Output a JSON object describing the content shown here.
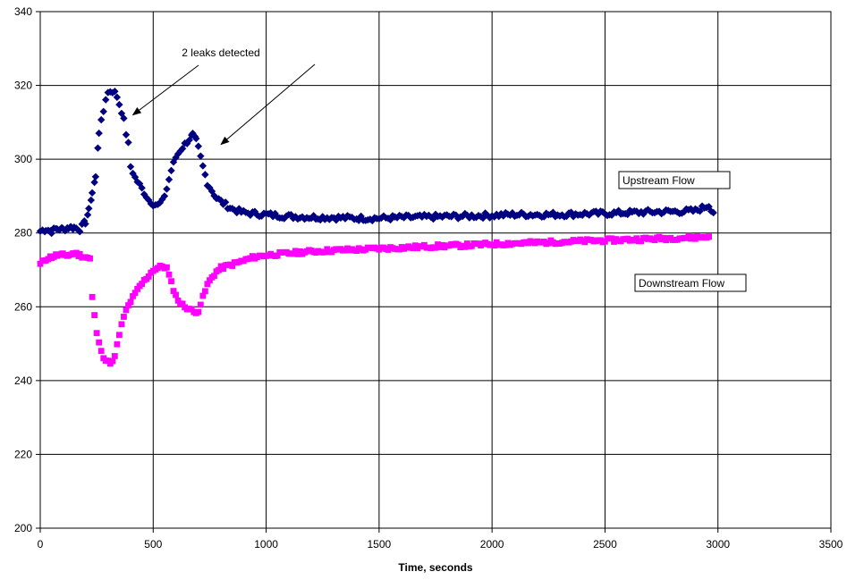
{
  "chart_data": {
    "type": "scatter",
    "title": "",
    "xlabel": "Time, seconds",
    "ylabel": "",
    "xlim": [
      0,
      3500
    ],
    "ylim": [
      200,
      340
    ],
    "xticks": [
      "0",
      "500",
      "1000",
      "1500",
      "2000",
      "2500",
      "3000",
      "3500"
    ],
    "yticks": [
      "200",
      "220",
      "240",
      "260",
      "280",
      "300",
      "320",
      "340"
    ],
    "grid": true,
    "legend": "none",
    "annotations": [
      {
        "text": "2 leaks detected",
        "arrows_to": [
          [
            410,
            312
          ],
          [
            800,
            304
          ]
        ]
      }
    ],
    "series": [
      {
        "name": "Upstream Flow",
        "marker": "diamond",
        "color": "#000080",
        "label_position": "right",
        "x": [
          0,
          25,
          50,
          75,
          100,
          125,
          150,
          175,
          200,
          215,
          230,
          245,
          260,
          270,
          280,
          290,
          300,
          310,
          320,
          330,
          340,
          350,
          360,
          370,
          380,
          390,
          400,
          420,
          440,
          460,
          480,
          500,
          520,
          540,
          560,
          580,
          600,
          620,
          640,
          660,
          675,
          690,
          700,
          720,
          740,
          760,
          780,
          800,
          850,
          900,
          1000,
          1100,
          1200,
          1300,
          1400,
          1500,
          1600,
          1700,
          1800,
          1900,
          2000,
          2100,
          2200,
          2300,
          2400,
          2500,
          2600,
          2700,
          2800,
          2900,
          2960,
          2980
        ],
        "y": [
          280.5,
          281.0,
          280.5,
          281.2,
          281.0,
          281.5,
          281.5,
          281.0,
          283.0,
          286.0,
          291.0,
          295.0,
          307.5,
          310.0,
          313.0,
          316.5,
          318.0,
          318.5,
          318.5,
          318.0,
          317.0,
          315.0,
          313.0,
          310.5,
          307.0,
          304.0,
          298.0,
          295.0,
          293.0,
          291.0,
          289.0,
          288.0,
          287.5,
          288.5,
          292.0,
          297.0,
          300.5,
          302.5,
          304.0,
          305.5,
          306.5,
          305.0,
          303.0,
          298.0,
          293.5,
          291.5,
          289.5,
          288.5,
          286.5,
          285.5,
          285.0,
          284.5,
          284.3,
          284.2,
          284.0,
          284.0,
          284.2,
          284.3,
          284.5,
          284.6,
          284.8,
          285.0,
          285.0,
          285.0,
          285.2,
          285.3,
          285.5,
          285.7,
          285.8,
          286.0,
          287.5,
          285.5
        ]
      },
      {
        "name": "Downstream Flow",
        "marker": "square",
        "color": "#ff00ff",
        "label_position": "right",
        "x": [
          0,
          25,
          50,
          75,
          100,
          125,
          150,
          175,
          200,
          220,
          230,
          240,
          250,
          260,
          270,
          280,
          290,
          300,
          310,
          320,
          330,
          340,
          350,
          360,
          370,
          380,
          400,
          420,
          440,
          460,
          480,
          500,
          520,
          540,
          560,
          580,
          600,
          620,
          640,
          660,
          680,
          700,
          720,
          740,
          760,
          780,
          800,
          850,
          900,
          950,
          1000,
          1100,
          1200,
          1300,
          1400,
          1500,
          1600,
          1700,
          1800,
          1900,
          2000,
          2100,
          2200,
          2300,
          2400,
          2500,
          2600,
          2700,
          2800,
          2900,
          2960
        ],
        "y": [
          271.5,
          273.0,
          273.5,
          274.0,
          274.0,
          274.0,
          274.5,
          274.0,
          273.5,
          273.0,
          262.5,
          257.5,
          253.0,
          250.0,
          248.5,
          246.5,
          245.5,
          245.0,
          245.0,
          245.0,
          246.5,
          249.5,
          252.5,
          255.0,
          257.0,
          259.0,
          261.5,
          263.5,
          265.5,
          267.0,
          268.5,
          270.0,
          270.5,
          271.0,
          270.5,
          266.5,
          263.0,
          261.0,
          260.0,
          259.5,
          258.5,
          259.0,
          262.5,
          266.0,
          268.0,
          269.5,
          270.5,
          271.5,
          272.5,
          273.5,
          274.0,
          274.5,
          275.0,
          275.3,
          275.5,
          275.8,
          276.0,
          276.3,
          276.5,
          276.7,
          277.0,
          277.2,
          277.4,
          277.6,
          277.8,
          278.0,
          278.2,
          278.4,
          278.6,
          278.8,
          279.0
        ]
      }
    ]
  }
}
